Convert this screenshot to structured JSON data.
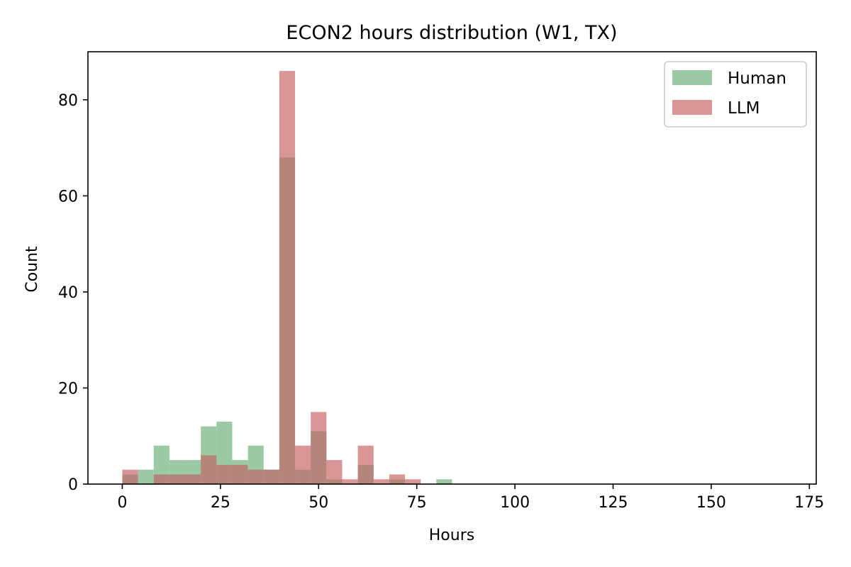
{
  "chart_data": {
    "type": "bar",
    "title": "ECON2 hours distribution (W1, TX)",
    "xlabel": "Hours",
    "ylabel": "Count",
    "xlim": [
      -8.75,
      176.75
    ],
    "ylim": [
      0,
      90
    ],
    "xticks": [
      0,
      25,
      50,
      75,
      100,
      125,
      150,
      175
    ],
    "yticks": [
      0,
      20,
      40,
      60,
      80
    ],
    "bin_width": 4,
    "legend_position": "top-right",
    "grid": false,
    "series": [
      {
        "name": "Human",
        "color": "#9bc9a3",
        "bins": [
          {
            "x0": 0,
            "x1": 4,
            "count": 2
          },
          {
            "x0": 4,
            "x1": 8,
            "count": 3
          },
          {
            "x0": 8,
            "x1": 12,
            "count": 8
          },
          {
            "x0": 12,
            "x1": 16,
            "count": 5
          },
          {
            "x0": 16,
            "x1": 20,
            "count": 5
          },
          {
            "x0": 20,
            "x1": 24,
            "count": 12
          },
          {
            "x0": 24,
            "x1": 28,
            "count": 13
          },
          {
            "x0": 28,
            "x1": 32,
            "count": 5
          },
          {
            "x0": 32,
            "x1": 36,
            "count": 8
          },
          {
            "x0": 36,
            "x1": 40,
            "count": 3
          },
          {
            "x0": 40,
            "x1": 44,
            "count": 68
          },
          {
            "x0": 44,
            "x1": 48,
            "count": 3
          },
          {
            "x0": 48,
            "x1": 52,
            "count": 11
          },
          {
            "x0": 52,
            "x1": 56,
            "count": 1
          },
          {
            "x0": 56,
            "x1": 60,
            "count": 0
          },
          {
            "x0": 60,
            "x1": 64,
            "count": 4
          },
          {
            "x0": 64,
            "x1": 68,
            "count": 0
          },
          {
            "x0": 68,
            "x1": 72,
            "count": 1
          },
          {
            "x0": 72,
            "x1": 76,
            "count": 0
          },
          {
            "x0": 76,
            "x1": 80,
            "count": 0
          },
          {
            "x0": 80,
            "x1": 84,
            "count": 1
          }
        ]
      },
      {
        "name": "LLM",
        "color": "#da9596",
        "bins": [
          {
            "x0": 0,
            "x1": 4,
            "count": 3
          },
          {
            "x0": 4,
            "x1": 8,
            "count": 0
          },
          {
            "x0": 8,
            "x1": 12,
            "count": 2
          },
          {
            "x0": 12,
            "x1": 16,
            "count": 2
          },
          {
            "x0": 16,
            "x1": 20,
            "count": 2
          },
          {
            "x0": 20,
            "x1": 24,
            "count": 6
          },
          {
            "x0": 24,
            "x1": 28,
            "count": 4
          },
          {
            "x0": 28,
            "x1": 32,
            "count": 4
          },
          {
            "x0": 32,
            "x1": 36,
            "count": 3
          },
          {
            "x0": 36,
            "x1": 40,
            "count": 3
          },
          {
            "x0": 40,
            "x1": 44,
            "count": 86
          },
          {
            "x0": 44,
            "x1": 48,
            "count": 8
          },
          {
            "x0": 48,
            "x1": 52,
            "count": 15
          },
          {
            "x0": 52,
            "x1": 56,
            "count": 5
          },
          {
            "x0": 56,
            "x1": 60,
            "count": 1
          },
          {
            "x0": 60,
            "x1": 64,
            "count": 8
          },
          {
            "x0": 64,
            "x1": 68,
            "count": 1
          },
          {
            "x0": 68,
            "x1": 72,
            "count": 2
          },
          {
            "x0": 72,
            "x1": 76,
            "count": 1
          }
        ]
      }
    ],
    "overlap_color": "#b48578"
  }
}
